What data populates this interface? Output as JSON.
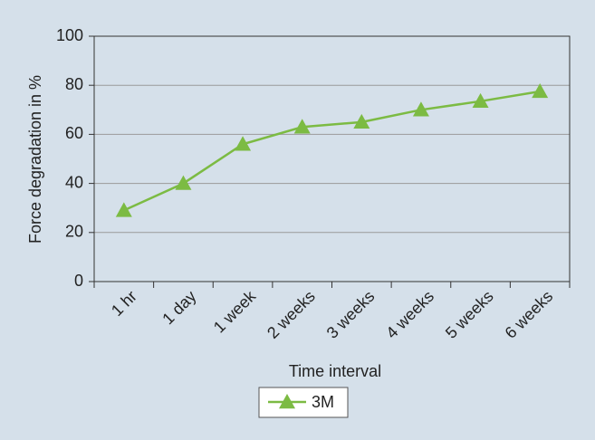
{
  "chart_data": {
    "type": "line",
    "x_label": "Time interval",
    "y_label": "Force degradation in %",
    "categories": [
      "1 hr",
      "1 day",
      "1 week",
      "2 weeks",
      "3 weeks",
      "4 weeks",
      "5 weeks",
      "6 weeks"
    ],
    "series": [
      {
        "name": "3M",
        "color": "#7cbb43",
        "values": [
          29,
          40,
          56,
          63,
          65,
          70,
          73.5,
          77.5
        ]
      }
    ],
    "ylim": [
      0,
      100
    ],
    "yticks": [
      0,
      20,
      40,
      60,
      80,
      100
    ],
    "grid": true,
    "legend": "bottom"
  }
}
